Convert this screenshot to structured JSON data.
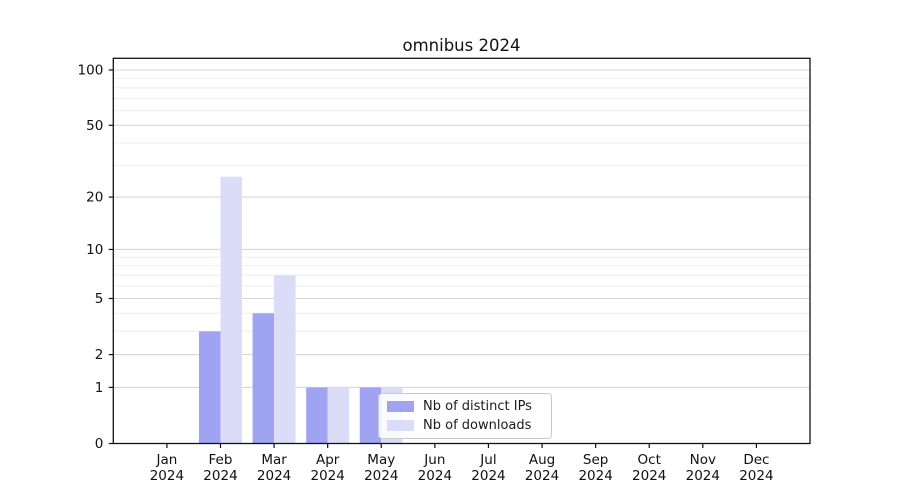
{
  "figure": {
    "title": "omnibus 2024",
    "background": "#ffffff"
  },
  "chart_data": {
    "type": "bar",
    "title": "omnibus 2024",
    "xlabel": "",
    "ylabel": "",
    "x_tick_months": [
      "Jan",
      "Feb",
      "Mar",
      "Apr",
      "May",
      "Jun",
      "Jul",
      "Aug",
      "Sep",
      "Oct",
      "Nov",
      "Dec"
    ],
    "x_tick_year": "2024",
    "series": [
      {
        "name": "Nb of distinct IPs",
        "color": "#a0a2f2",
        "values": [
          0,
          3,
          4,
          1,
          1,
          0,
          0,
          0,
          0,
          0,
          0,
          0
        ]
      },
      {
        "name": "Nb of downloads",
        "color": "#dbdcf8",
        "values": [
          0,
          26,
          7,
          1,
          1,
          0,
          0,
          0,
          0,
          0,
          0,
          0
        ]
      }
    ],
    "y_scale": "log10(value+1)",
    "y_axis_ticks": [
      0,
      1,
      2,
      5,
      10,
      20,
      50,
      100
    ],
    "y_minor_gridlines": [
      3,
      4,
      6,
      7,
      8,
      9,
      30,
      40,
      60,
      70,
      80,
      90
    ],
    "ylim": [
      0,
      116
    ],
    "grid": "on",
    "legend_position": "lower center",
    "legend_entries": [
      "Nb of distinct IPs",
      "Nb of downloads"
    ]
  },
  "colors": {
    "major_grid": "#d7d7d7",
    "minor_grid": "#eeeeee",
    "axis": "#111111",
    "text": "#111111",
    "legend_border": "#c9c9c9"
  }
}
